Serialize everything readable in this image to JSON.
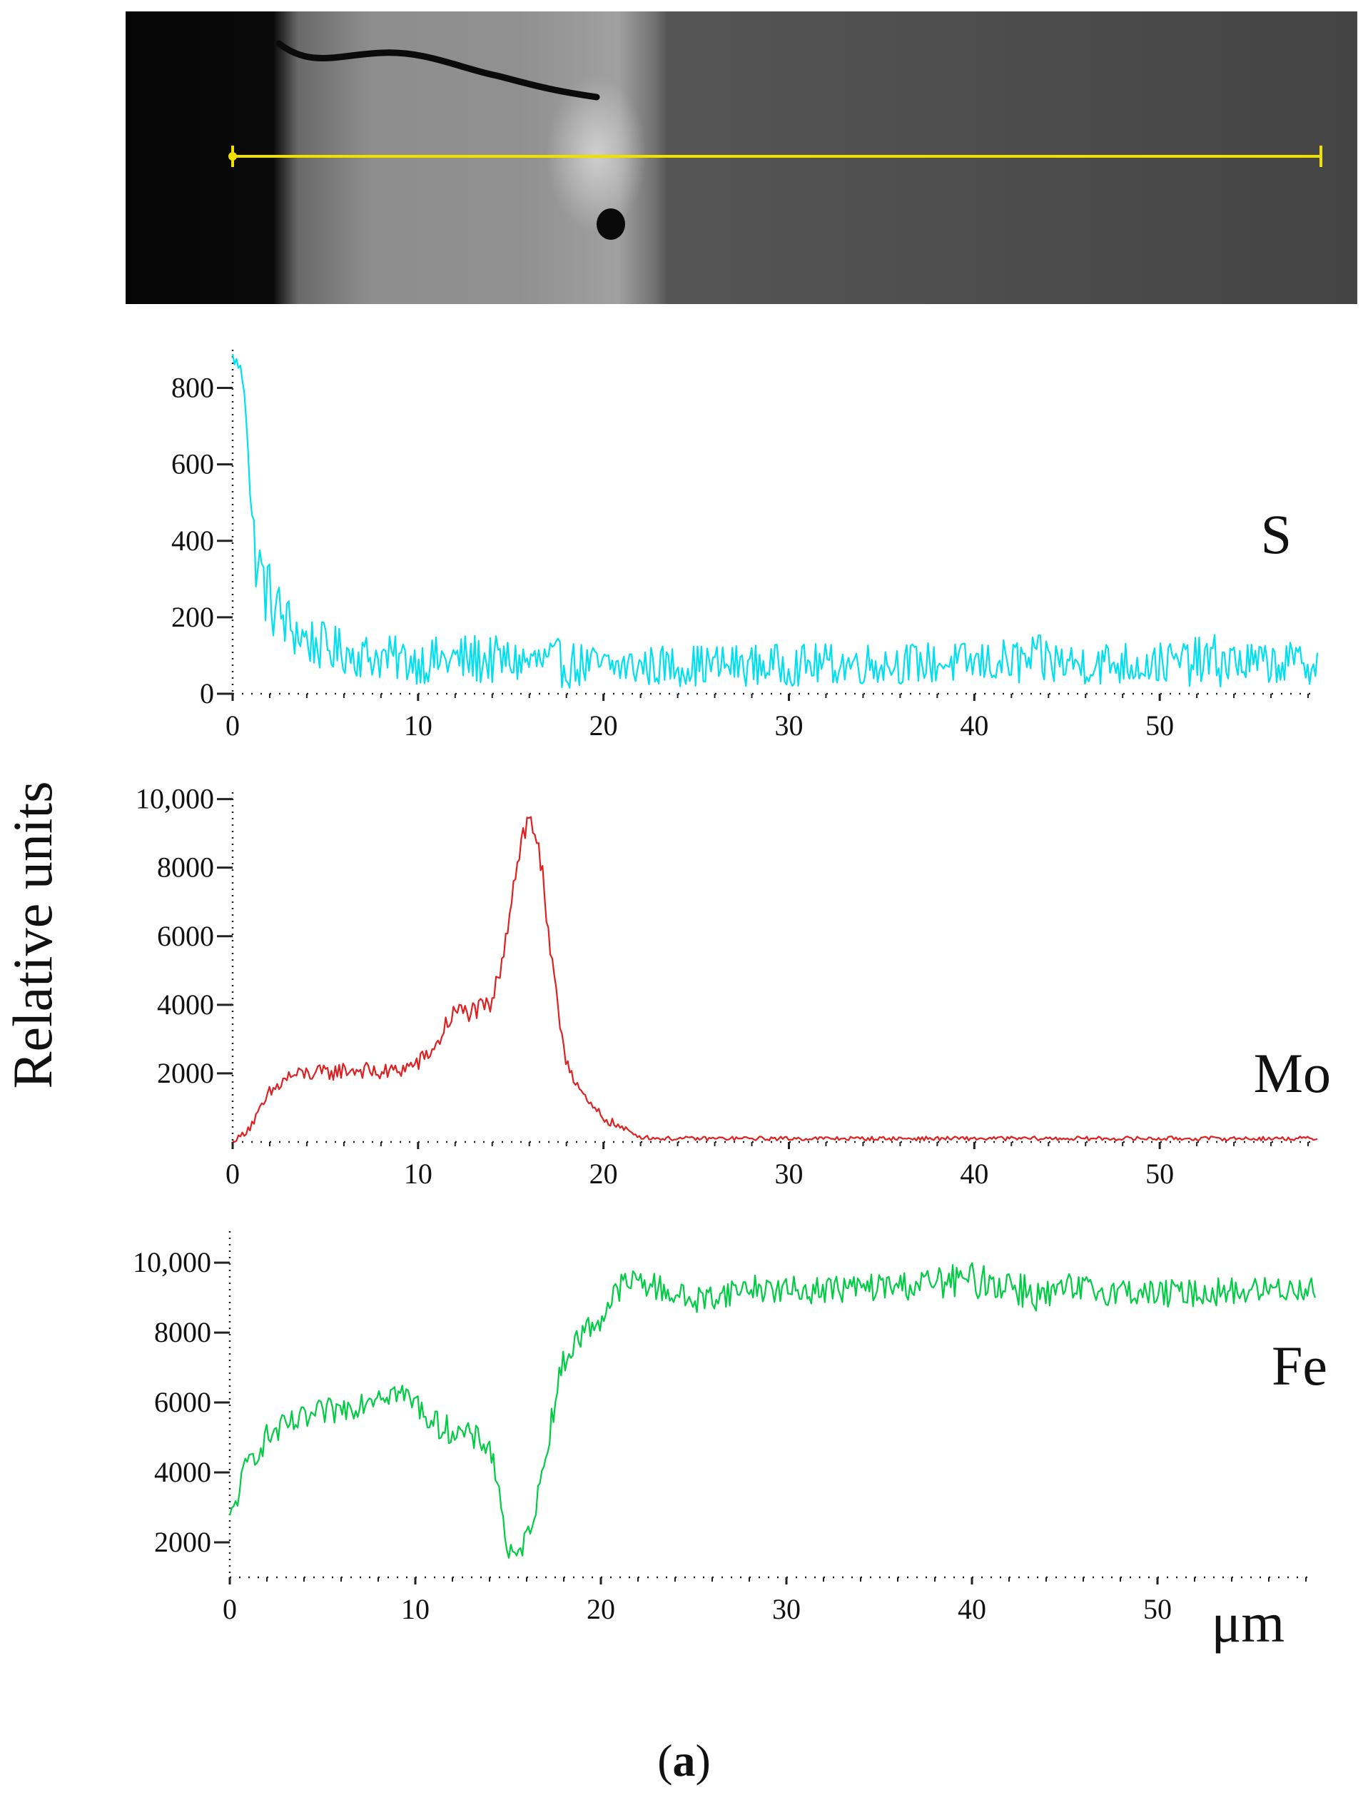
{
  "figure": {
    "caption_open": "(",
    "caption_letter": "a",
    "caption_close": ")",
    "y_axis_label": "Relative units",
    "x_unit_label": "μm"
  },
  "colors": {
    "S": "#00e0f0",
    "Mo": "#e02020",
    "Fe": "#00cc44",
    "scan_line": "#f0e000"
  },
  "chart_data": [
    {
      "type": "line",
      "element": "S",
      "label": "S",
      "x_range": [
        0,
        58.5
      ],
      "ylim": [
        0,
        900
      ],
      "xticks": [
        0,
        10,
        20,
        30,
        40,
        50
      ],
      "yticks": [
        0,
        200,
        400,
        600,
        800
      ],
      "ytick_labels": [
        "0",
        "200",
        "400",
        "600",
        "800"
      ],
      "series": [
        {
          "name": "S",
          "x": [
            0,
            0.3,
            0.6,
            0.8,
            1.0,
            1.3,
            1.6,
            2.0,
            2.5,
            3.0,
            3.5,
            4.0,
            5.0,
            6.0,
            7.0,
            8.0,
            10,
            13,
            15,
            17.5,
            20,
            25,
            30,
            35,
            40,
            44,
            45,
            48,
            50,
            53,
            55,
            58.5
          ],
          "y": [
            880,
            860,
            820,
            700,
            450,
            350,
            300,
            250,
            210,
            180,
            160,
            140,
            120,
            110,
            100,
            95,
            85,
            90,
            85,
            80,
            70,
            75,
            75,
            80,
            80,
            85,
            80,
            80,
            80,
            85,
            80,
            80
          ],
          "spread": [
            20,
            20,
            30,
            40,
            80,
            100,
            100,
            100,
            90,
            80,
            75,
            70,
            65,
            60,
            60,
            60,
            60,
            70,
            60,
            65,
            55,
            55,
            55,
            55,
            55,
            70,
            55,
            60,
            55,
            70,
            55,
            55
          ]
        }
      ]
    },
    {
      "type": "line",
      "element": "Mo",
      "label": "Mo",
      "x_range": [
        0,
        58.5
      ],
      "ylim": [
        0,
        10200
      ],
      "xticks": [
        0,
        10,
        20,
        30,
        40,
        50
      ],
      "yticks": [
        2000,
        4000,
        6000,
        8000,
        10000
      ],
      "ytick_labels": [
        "2000",
        "4000",
        "6000",
        "8000",
        "10,000"
      ],
      "series": [
        {
          "name": "Mo",
          "x": [
            0,
            0.5,
            1,
            1.5,
            2,
            3,
            4,
            5,
            6,
            7,
            8,
            9,
            10,
            11,
            11.5,
            12,
            13,
            14,
            14.5,
            15,
            15.5,
            16,
            16.5,
            17,
            17.5,
            18,
            19,
            20,
            21,
            22,
            23,
            25,
            30,
            40,
            50,
            58.5
          ],
          "y": [
            0,
            200,
            500,
            900,
            1400,
            1900,
            2000,
            2000,
            2100,
            2100,
            2000,
            2100,
            2300,
            2800,
            3400,
            3800,
            3800,
            4000,
            5300,
            7000,
            8700,
            9400,
            8800,
            6000,
            4000,
            2400,
            1200,
            700,
            400,
            150,
            100,
            100,
            100,
            100,
            100,
            100
          ],
          "spread": [
            50,
            100,
            150,
            200,
            250,
            250,
            250,
            250,
            250,
            250,
            250,
            250,
            250,
            250,
            300,
            300,
            300,
            300,
            400,
            400,
            500,
            500,
            500,
            400,
            300,
            250,
            200,
            150,
            100,
            60,
            60,
            60,
            60,
            60,
            60,
            60
          ]
        }
      ]
    },
    {
      "type": "line",
      "element": "Fe",
      "label": "Fe",
      "x_range": [
        0,
        58.5
      ],
      "ylim": [
        1000,
        10900
      ],
      "xticks": [
        0,
        10,
        20,
        30,
        40,
        50
      ],
      "yticks": [
        2000,
        4000,
        6000,
        8000,
        10000
      ],
      "ytick_labels": [
        "2000",
        "4000",
        "6000",
        "8000",
        "10,000"
      ],
      "series": [
        {
          "name": "Fe",
          "x": [
            0,
            0.5,
            1,
            2,
            3,
            4,
            5,
            6,
            7,
            8,
            9,
            10,
            11,
            12,
            13,
            14,
            14.5,
            15,
            15.5,
            16,
            16.5,
            17,
            17.5,
            18,
            19,
            20,
            21,
            22,
            25,
            28,
            30,
            35,
            40,
            42,
            44,
            45,
            48,
            50,
            55,
            58.5
          ],
          "y": [
            2600,
            3500,
            4300,
            5000,
            5300,
            5500,
            5700,
            5800,
            6000,
            6300,
            6300,
            6000,
            5400,
            5200,
            5000,
            4800,
            3500,
            1700,
            1500,
            2200,
            3000,
            4500,
            6000,
            7200,
            8000,
            8400,
            9300,
            9500,
            8900,
            9300,
            9200,
            9300,
            9500,
            9400,
            9000,
            9200,
            9200,
            9100,
            9200,
            9300
          ],
          "spread": [
            300,
            400,
            400,
            400,
            400,
            400,
            400,
            400,
            400,
            400,
            400,
            400,
            400,
            400,
            400,
            400,
            400,
            300,
            300,
            300,
            300,
            400,
            400,
            400,
            400,
            400,
            400,
            400,
            400,
            400,
            400,
            400,
            500,
            600,
            500,
            500,
            400,
            400,
            400,
            400
          ]
        }
      ]
    }
  ]
}
